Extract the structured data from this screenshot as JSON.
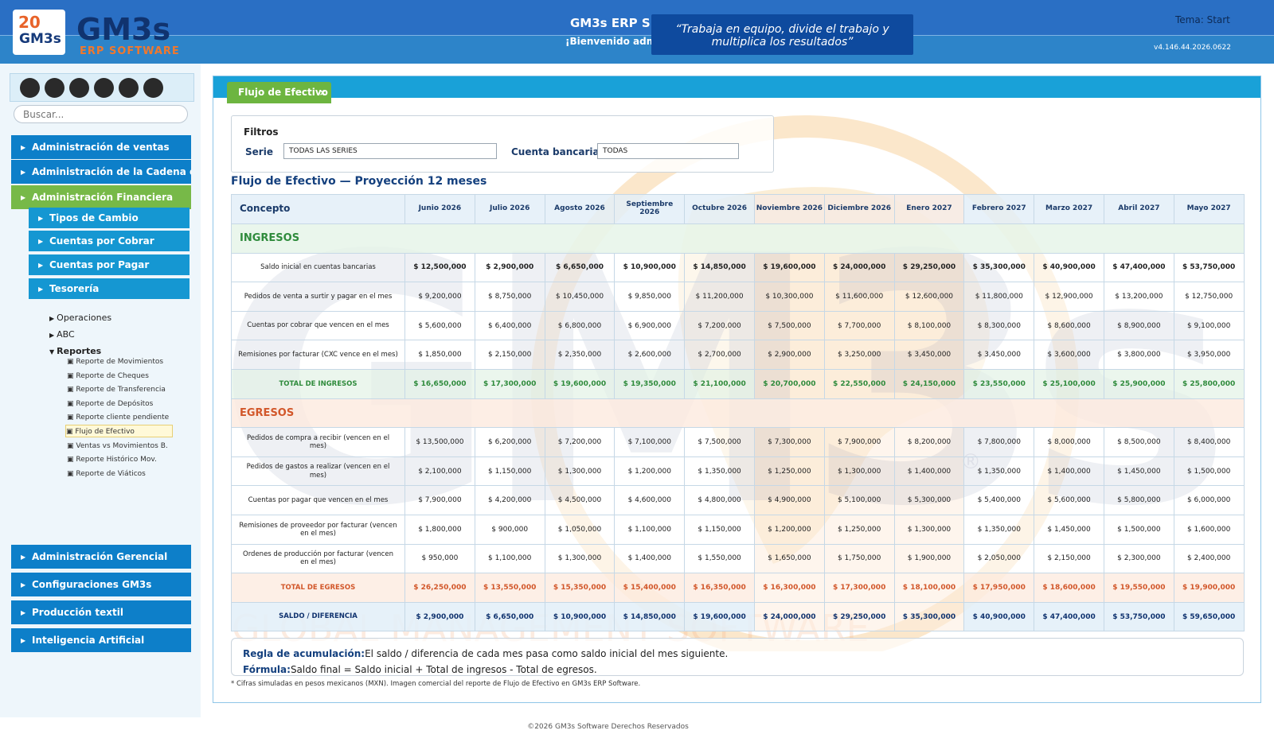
{
  "header": {
    "logo_top": "20",
    "logo_bottom": "GM3s",
    "brand": "GM3s",
    "brand_sub": "ERP SOFTWARE",
    "app_title": "GM3s ERP S",
    "welcome": "¡Bienvenido adm",
    "quote": "“Trabaja en equipo, divide el trabajo y multiplica los resultados”",
    "theme": "Tema: Start",
    "version": "v4.146.44.2026.0622",
    "colors": {
      "primary": "#2a6fc4",
      "accent": "#f0782d",
      "green": "#77b948"
    }
  },
  "sidebar": {
    "search_placeholder": "Buscar...",
    "menu": [
      {
        "label": "Administración de ventas"
      },
      {
        "label": "Administración de la Cadena de Suministro"
      },
      {
        "label": "Administración Financiera"
      }
    ],
    "submenu": [
      {
        "label": "Tipos de Cambio"
      },
      {
        "label": "Cuentas por Cobrar"
      },
      {
        "label": "Cuentas por Pagar"
      },
      {
        "label": "Tesorería"
      }
    ],
    "tree": [
      {
        "label": "Operaciones"
      },
      {
        "label": "ABC"
      },
      {
        "label": "Reportes"
      }
    ],
    "reports": [
      "Reporte de Movimientos",
      "Reporte de Cheques",
      "Reporte de Transferencia",
      "Reporte de Depósitos",
      "Reporte cliente pendiente",
      "Flujo de Efectivo",
      "Ventas vs Movimientos B.",
      "Reporte Histórico Mov.",
      "Reporte de Viáticos"
    ],
    "bottom_menu": [
      {
        "label": "Administración Gerencial"
      },
      {
        "label": "Configuraciones GM3s"
      },
      {
        "label": "Producción textil"
      },
      {
        "label": "Inteligencia Artificial"
      }
    ]
  },
  "main": {
    "tab_label": "Flujo de Efectivo",
    "tab_close": "×",
    "filters": {
      "title": "Filtros",
      "serie_label": "Serie",
      "serie_value": "TODAS LAS SERIES",
      "bank_label": "Cuenta bancaria",
      "bank_value": "TODAS"
    },
    "report_title": "Flujo de Efectivo — Proyección 12 meses",
    "table": {
      "concept_header": "Concepto",
      "months": [
        "Junio 2026",
        "Julio 2026",
        "Agosto 2026",
        "Septiembre 2026",
        "Octubre 2026",
        "Noviembre 2026",
        "Diciembre 2026",
        "Enero 2027",
        "Febrero 2027",
        "Marzo 2027",
        "Abril 2027",
        "Mayo 2027"
      ],
      "ingresos_title": "INGRESOS",
      "ingresos_rows": [
        {
          "label": "Saldo inicial en cuentas bancarias",
          "values": [
            "$ 12,500,000",
            "$ 2,900,000",
            "$ 6,650,000",
            "$ 10,900,000",
            "$ 14,850,000",
            "$ 19,600,000",
            "$ 24,000,000",
            "$ 29,250,000",
            "$ 35,300,000",
            "$ 40,900,000",
            "$ 47,400,000",
            "$ 53,750,000"
          ]
        },
        {
          "label": "Pedidos de venta a surtir y pagar en el mes",
          "values": [
            "$ 9,200,000",
            "$ 8,750,000",
            "$ 10,450,000",
            "$ 9,850,000",
            "$ 11,200,000",
            "$ 10,300,000",
            "$ 11,600,000",
            "$ 12,600,000",
            "$ 11,800,000",
            "$ 12,900,000",
            "$ 13,200,000",
            "$ 12,750,000"
          ]
        },
        {
          "label": "Cuentas por cobrar que vencen en el mes",
          "values": [
            "$ 5,600,000",
            "$ 6,400,000",
            "$ 6,800,000",
            "$ 6,900,000",
            "$ 7,200,000",
            "$ 7,500,000",
            "$ 7,700,000",
            "$ 8,100,000",
            "$ 8,300,000",
            "$ 8,600,000",
            "$ 8,900,000",
            "$ 9,100,000"
          ]
        },
        {
          "label": "Remisiones por facturar (CXC vence en el mes)",
          "values": [
            "$ 1,850,000",
            "$ 2,150,000",
            "$ 2,350,000",
            "$ 2,600,000",
            "$ 2,700,000",
            "$ 2,900,000",
            "$ 3,250,000",
            "$ 3,450,000",
            "$ 3,450,000",
            "$ 3,600,000",
            "$ 3,800,000",
            "$ 3,950,000"
          ]
        }
      ],
      "total_ingresos": {
        "label": "TOTAL DE INGRESOS",
        "values": [
          "$ 16,650,000",
          "$ 17,300,000",
          "$ 19,600,000",
          "$ 19,350,000",
          "$ 21,100,000",
          "$ 20,700,000",
          "$ 22,550,000",
          "$ 24,150,000",
          "$ 23,550,000",
          "$ 25,100,000",
          "$ 25,900,000",
          "$ 25,800,000"
        ]
      },
      "egresos_title": "EGRESOS",
      "egresos_rows": [
        {
          "label": "Pedidos de compra a recibir (vencen en el mes)",
          "values": [
            "$ 13,500,000",
            "$ 6,200,000",
            "$ 7,200,000",
            "$ 7,100,000",
            "$ 7,500,000",
            "$ 7,300,000",
            "$ 7,900,000",
            "$ 8,200,000",
            "$ 7,800,000",
            "$ 8,000,000",
            "$ 8,500,000",
            "$ 8,400,000"
          ]
        },
        {
          "label": "Pedidos de gastos a realizar (vencen en el mes)",
          "values": [
            "$ 2,100,000",
            "$ 1,150,000",
            "$ 1,300,000",
            "$ 1,200,000",
            "$ 1,350,000",
            "$ 1,250,000",
            "$ 1,300,000",
            "$ 1,400,000",
            "$ 1,350,000",
            "$ 1,400,000",
            "$ 1,450,000",
            "$ 1,500,000"
          ]
        },
        {
          "label": "Cuentas por pagar que vencen en el mes",
          "values": [
            "$ 7,900,000",
            "$ 4,200,000",
            "$ 4,500,000",
            "$ 4,600,000",
            "$ 4,800,000",
            "$ 4,900,000",
            "$ 5,100,000",
            "$ 5,300,000",
            "$ 5,400,000",
            "$ 5,600,000",
            "$ 5,800,000",
            "$ 6,000,000"
          ]
        },
        {
          "label": "Remisiones de proveedor por facturar (vencen en el mes)",
          "values": [
            "$ 1,800,000",
            "$ 900,000",
            "$ 1,050,000",
            "$ 1,100,000",
            "$ 1,150,000",
            "$ 1,200,000",
            "$ 1,250,000",
            "$ 1,300,000",
            "$ 1,350,000",
            "$ 1,450,000",
            "$ 1,500,000",
            "$ 1,600,000"
          ]
        },
        {
          "label": "Ordenes de producción por facturar (vencen en el mes)",
          "values": [
            "$ 950,000",
            "$ 1,100,000",
            "$ 1,300,000",
            "$ 1,400,000",
            "$ 1,550,000",
            "$ 1,650,000",
            "$ 1,750,000",
            "$ 1,900,000",
            "$ 2,050,000",
            "$ 2,150,000",
            "$ 2,300,000",
            "$ 2,400,000"
          ]
        }
      ],
      "total_egresos": {
        "label": "TOTAL DE EGRESOS",
        "values": [
          "$ 26,250,000",
          "$ 13,550,000",
          "$ 15,350,000",
          "$ 15,400,000",
          "$ 16,350,000",
          "$ 16,300,000",
          "$ 17,300,000",
          "$ 18,100,000",
          "$ 17,950,000",
          "$ 18,600,000",
          "$ 19,550,000",
          "$ 19,900,000"
        ]
      },
      "saldo": {
        "label": "SALDO / DIFERENCIA",
        "values": [
          "$ 2,900,000",
          "$ 6,650,000",
          "$ 10,900,000",
          "$ 14,850,000",
          "$ 19,600,000",
          "$ 24,000,000",
          "$ 29,250,000",
          "$ 35,300,000",
          "$ 40,900,000",
          "$ 47,400,000",
          "$ 53,750,000",
          "$ 59,650,000"
        ]
      }
    },
    "rule_label": "Regla de acumulación:",
    "rule_text": "El saldo / diferencia de cada mes pasa como saldo inicial del mes siguiente.",
    "formula_label": "Fórmula:",
    "formula_text": "Saldo final = Saldo inicial + Total de ingresos - Total de egresos.",
    "footnote": "* Cifras simuladas en pesos mexicanos (MXN). Imagen comercial del reporte de Flujo de Efectivo en GM3s ERP Software.",
    "watermark_text": "GM3s",
    "watermark_sub": "GLOBAL MANAGEMENT SOFTWARE",
    "watermark_mark": "®"
  },
  "footer": {
    "copyright": "©2026 GM3s Software Derechos Reservados"
  }
}
